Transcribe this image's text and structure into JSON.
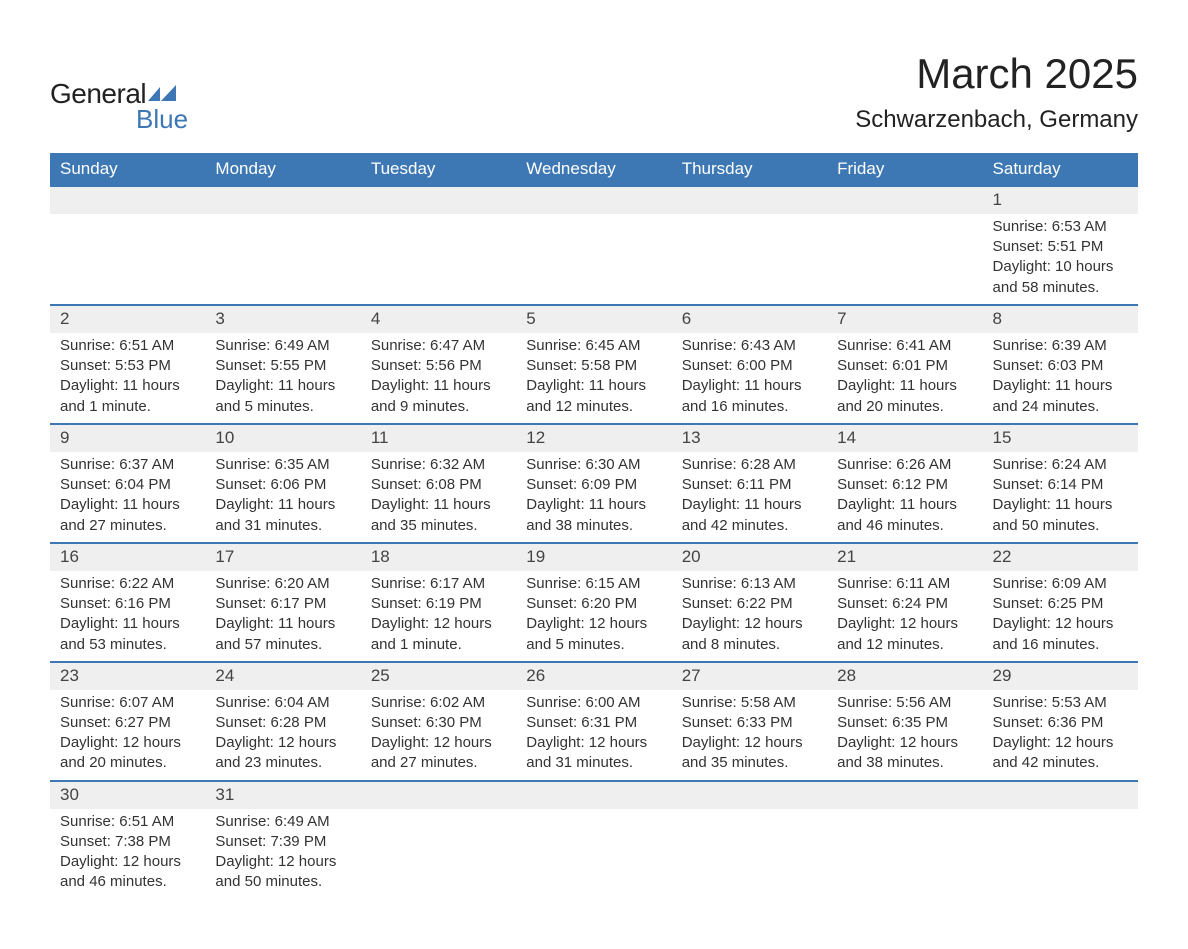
{
  "brand": {
    "general": "General",
    "blue": "Blue",
    "icon_color": "#3d78b5"
  },
  "title": "March 2025",
  "location": "Schwarzenbach, Germany",
  "day_headers": [
    "Sunday",
    "Monday",
    "Tuesday",
    "Wednesday",
    "Thursday",
    "Friday",
    "Saturday"
  ],
  "colors": {
    "header_bg": "#3d78b5",
    "header_text": "#ffffff",
    "daynum_bg": "#efefef",
    "row_border": "#3d78b5",
    "body_text": "#333333",
    "page_bg": "#ffffff"
  },
  "typography": {
    "title_fontsize": 42,
    "location_fontsize": 24,
    "header_fontsize": 17,
    "daynum_fontsize": 17,
    "cell_fontsize": 15
  },
  "weeks": [
    [
      {
        "n": "",
        "lines": [
          "",
          "",
          "",
          ""
        ]
      },
      {
        "n": "",
        "lines": [
          "",
          "",
          "",
          ""
        ]
      },
      {
        "n": "",
        "lines": [
          "",
          "",
          "",
          ""
        ]
      },
      {
        "n": "",
        "lines": [
          "",
          "",
          "",
          ""
        ]
      },
      {
        "n": "",
        "lines": [
          "",
          "",
          "",
          ""
        ]
      },
      {
        "n": "",
        "lines": [
          "",
          "",
          "",
          ""
        ]
      },
      {
        "n": "1",
        "lines": [
          "Sunrise: 6:53 AM",
          "Sunset: 5:51 PM",
          "Daylight: 10 hours",
          "and 58 minutes."
        ]
      }
    ],
    [
      {
        "n": "2",
        "lines": [
          "Sunrise: 6:51 AM",
          "Sunset: 5:53 PM",
          "Daylight: 11 hours",
          "and 1 minute."
        ]
      },
      {
        "n": "3",
        "lines": [
          "Sunrise: 6:49 AM",
          "Sunset: 5:55 PM",
          "Daylight: 11 hours",
          "and 5 minutes."
        ]
      },
      {
        "n": "4",
        "lines": [
          "Sunrise: 6:47 AM",
          "Sunset: 5:56 PM",
          "Daylight: 11 hours",
          "and 9 minutes."
        ]
      },
      {
        "n": "5",
        "lines": [
          "Sunrise: 6:45 AM",
          "Sunset: 5:58 PM",
          "Daylight: 11 hours",
          "and 12 minutes."
        ]
      },
      {
        "n": "6",
        "lines": [
          "Sunrise: 6:43 AM",
          "Sunset: 6:00 PM",
          "Daylight: 11 hours",
          "and 16 minutes."
        ]
      },
      {
        "n": "7",
        "lines": [
          "Sunrise: 6:41 AM",
          "Sunset: 6:01 PM",
          "Daylight: 11 hours",
          "and 20 minutes."
        ]
      },
      {
        "n": "8",
        "lines": [
          "Sunrise: 6:39 AM",
          "Sunset: 6:03 PM",
          "Daylight: 11 hours",
          "and 24 minutes."
        ]
      }
    ],
    [
      {
        "n": "9",
        "lines": [
          "Sunrise: 6:37 AM",
          "Sunset: 6:04 PM",
          "Daylight: 11 hours",
          "and 27 minutes."
        ]
      },
      {
        "n": "10",
        "lines": [
          "Sunrise: 6:35 AM",
          "Sunset: 6:06 PM",
          "Daylight: 11 hours",
          "and 31 minutes."
        ]
      },
      {
        "n": "11",
        "lines": [
          "Sunrise: 6:32 AM",
          "Sunset: 6:08 PM",
          "Daylight: 11 hours",
          "and 35 minutes."
        ]
      },
      {
        "n": "12",
        "lines": [
          "Sunrise: 6:30 AM",
          "Sunset: 6:09 PM",
          "Daylight: 11 hours",
          "and 38 minutes."
        ]
      },
      {
        "n": "13",
        "lines": [
          "Sunrise: 6:28 AM",
          "Sunset: 6:11 PM",
          "Daylight: 11 hours",
          "and 42 minutes."
        ]
      },
      {
        "n": "14",
        "lines": [
          "Sunrise: 6:26 AM",
          "Sunset: 6:12 PM",
          "Daylight: 11 hours",
          "and 46 minutes."
        ]
      },
      {
        "n": "15",
        "lines": [
          "Sunrise: 6:24 AM",
          "Sunset: 6:14 PM",
          "Daylight: 11 hours",
          "and 50 minutes."
        ]
      }
    ],
    [
      {
        "n": "16",
        "lines": [
          "Sunrise: 6:22 AM",
          "Sunset: 6:16 PM",
          "Daylight: 11 hours",
          "and 53 minutes."
        ]
      },
      {
        "n": "17",
        "lines": [
          "Sunrise: 6:20 AM",
          "Sunset: 6:17 PM",
          "Daylight: 11 hours",
          "and 57 minutes."
        ]
      },
      {
        "n": "18",
        "lines": [
          "Sunrise: 6:17 AM",
          "Sunset: 6:19 PM",
          "Daylight: 12 hours",
          "and 1 minute."
        ]
      },
      {
        "n": "19",
        "lines": [
          "Sunrise: 6:15 AM",
          "Sunset: 6:20 PM",
          "Daylight: 12 hours",
          "and 5 minutes."
        ]
      },
      {
        "n": "20",
        "lines": [
          "Sunrise: 6:13 AM",
          "Sunset: 6:22 PM",
          "Daylight: 12 hours",
          "and 8 minutes."
        ]
      },
      {
        "n": "21",
        "lines": [
          "Sunrise: 6:11 AM",
          "Sunset: 6:24 PM",
          "Daylight: 12 hours",
          "and 12 minutes."
        ]
      },
      {
        "n": "22",
        "lines": [
          "Sunrise: 6:09 AM",
          "Sunset: 6:25 PM",
          "Daylight: 12 hours",
          "and 16 minutes."
        ]
      }
    ],
    [
      {
        "n": "23",
        "lines": [
          "Sunrise: 6:07 AM",
          "Sunset: 6:27 PM",
          "Daylight: 12 hours",
          "and 20 minutes."
        ]
      },
      {
        "n": "24",
        "lines": [
          "Sunrise: 6:04 AM",
          "Sunset: 6:28 PM",
          "Daylight: 12 hours",
          "and 23 minutes."
        ]
      },
      {
        "n": "25",
        "lines": [
          "Sunrise: 6:02 AM",
          "Sunset: 6:30 PM",
          "Daylight: 12 hours",
          "and 27 minutes."
        ]
      },
      {
        "n": "26",
        "lines": [
          "Sunrise: 6:00 AM",
          "Sunset: 6:31 PM",
          "Daylight: 12 hours",
          "and 31 minutes."
        ]
      },
      {
        "n": "27",
        "lines": [
          "Sunrise: 5:58 AM",
          "Sunset: 6:33 PM",
          "Daylight: 12 hours",
          "and 35 minutes."
        ]
      },
      {
        "n": "28",
        "lines": [
          "Sunrise: 5:56 AM",
          "Sunset: 6:35 PM",
          "Daylight: 12 hours",
          "and 38 minutes."
        ]
      },
      {
        "n": "29",
        "lines": [
          "Sunrise: 5:53 AM",
          "Sunset: 6:36 PM",
          "Daylight: 12 hours",
          "and 42 minutes."
        ]
      }
    ],
    [
      {
        "n": "30",
        "lines": [
          "Sunrise: 6:51 AM",
          "Sunset: 7:38 PM",
          "Daylight: 12 hours",
          "and 46 minutes."
        ]
      },
      {
        "n": "31",
        "lines": [
          "Sunrise: 6:49 AM",
          "Sunset: 7:39 PM",
          "Daylight: 12 hours",
          "and 50 minutes."
        ]
      },
      {
        "n": "",
        "lines": [
          "",
          "",
          "",
          ""
        ]
      },
      {
        "n": "",
        "lines": [
          "",
          "",
          "",
          ""
        ]
      },
      {
        "n": "",
        "lines": [
          "",
          "",
          "",
          ""
        ]
      },
      {
        "n": "",
        "lines": [
          "",
          "",
          "",
          ""
        ]
      },
      {
        "n": "",
        "lines": [
          "",
          "",
          "",
          ""
        ]
      }
    ]
  ]
}
